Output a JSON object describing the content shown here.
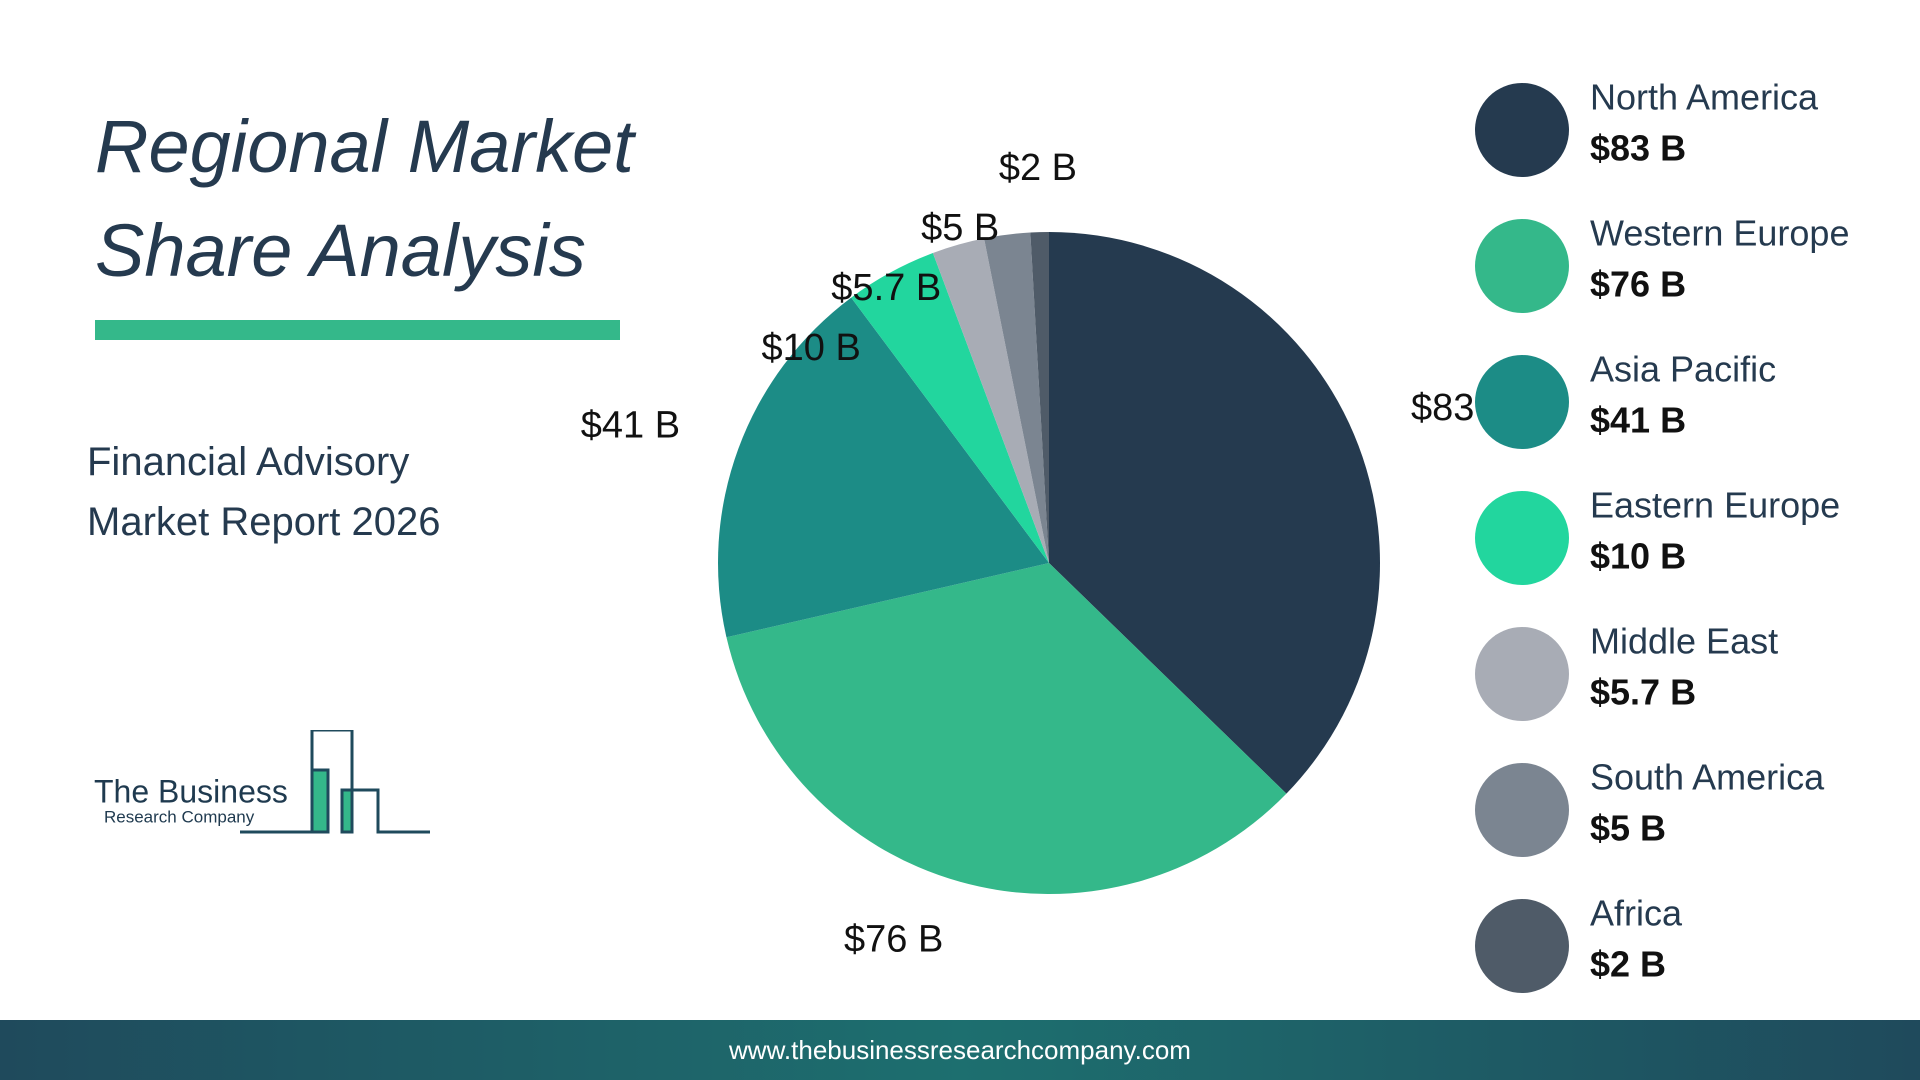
{
  "title": "Regional Market Share Analysis",
  "subtitle": "Financial Advisory Market Report 2026",
  "logo": {
    "line1": "The Business",
    "line2": "Research Company"
  },
  "footer": "www.thebusinessresearchcompany.com",
  "chart_data": {
    "type": "pie",
    "categories": [
      "North America",
      "Western Europe",
      "Asia Pacific",
      "Eastern Europe",
      "Middle East",
      "South America",
      "Africa"
    ],
    "values": [
      83,
      76,
      41,
      10,
      5.7,
      5,
      2
    ],
    "value_labels": [
      "$83 B",
      "$76 B",
      "$41 B",
      "$10 B",
      "$5.7 B",
      "$5 B",
      "$2 B"
    ],
    "colors": [
      "#253a4f",
      "#34b88a",
      "#1c8c86",
      "#22d69e",
      "#a8acb5",
      "#7b8591",
      "#4f5b68"
    ],
    "legend": "right"
  }
}
